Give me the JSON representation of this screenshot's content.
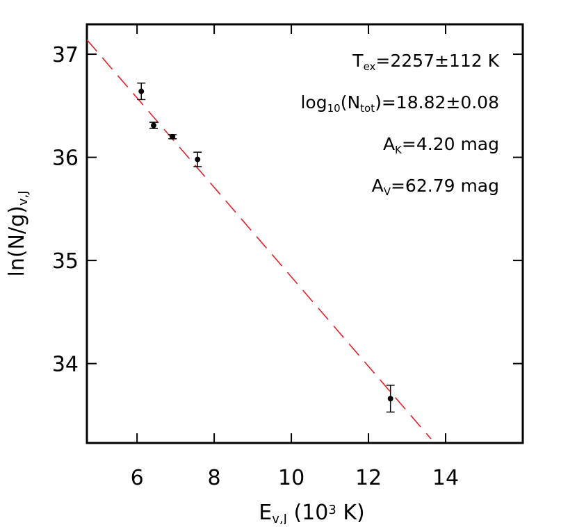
{
  "chart_data": {
    "type": "scatter",
    "x_label": [
      {
        "text": "E"
      },
      {
        "text": "v,J",
        "shift": "sub"
      },
      {
        "text": " (10"
      },
      {
        "text": "3",
        "shift": "super"
      },
      {
        "text": " K)"
      }
    ],
    "y_label": [
      {
        "text": "ln(N/g)"
      },
      {
        "text": "v,J",
        "shift": "sub"
      }
    ],
    "annotations": [
      [
        {
          "text": "T"
        },
        {
          "text": "ex",
          "shift": "sub"
        },
        {
          "text": "=2257±112 K"
        }
      ],
      [
        {
          "text": "log"
        },
        {
          "text": "10",
          "shift": "sub"
        },
        {
          "text": "(N"
        },
        {
          "text": "tot",
          "shift": "sub"
        },
        {
          "text": ")=18.82±0.08"
        }
      ],
      [
        {
          "text": "A"
        },
        {
          "text": "K",
          "shift": "sub"
        },
        {
          "text": "=4.20 mag"
        }
      ],
      [
        {
          "text": "A"
        },
        {
          "text": "V",
          "shift": "sub"
        },
        {
          "text": "=62.79 mag"
        }
      ]
    ],
    "x": [
      6.11,
      6.43,
      6.92,
      7.57,
      12.57
    ],
    "values": [
      36.64,
      36.31,
      36.2,
      35.98,
      33.66
    ],
    "errors": [
      0.08,
      0.03,
      0.02,
      0.07,
      0.13
    ],
    "color": "#000000",
    "fit": {
      "x": [
        4.7,
        13.62
      ],
      "y": [
        37.14,
        33.27
      ],
      "color": "#e0202a"
    },
    "xlim": [
      4.7,
      16.0
    ],
    "ylim": [
      33.23,
      37.29
    ],
    "xticks": [
      6,
      8,
      10,
      12,
      14
    ],
    "yticks": [
      34,
      35,
      36,
      37
    ]
  }
}
